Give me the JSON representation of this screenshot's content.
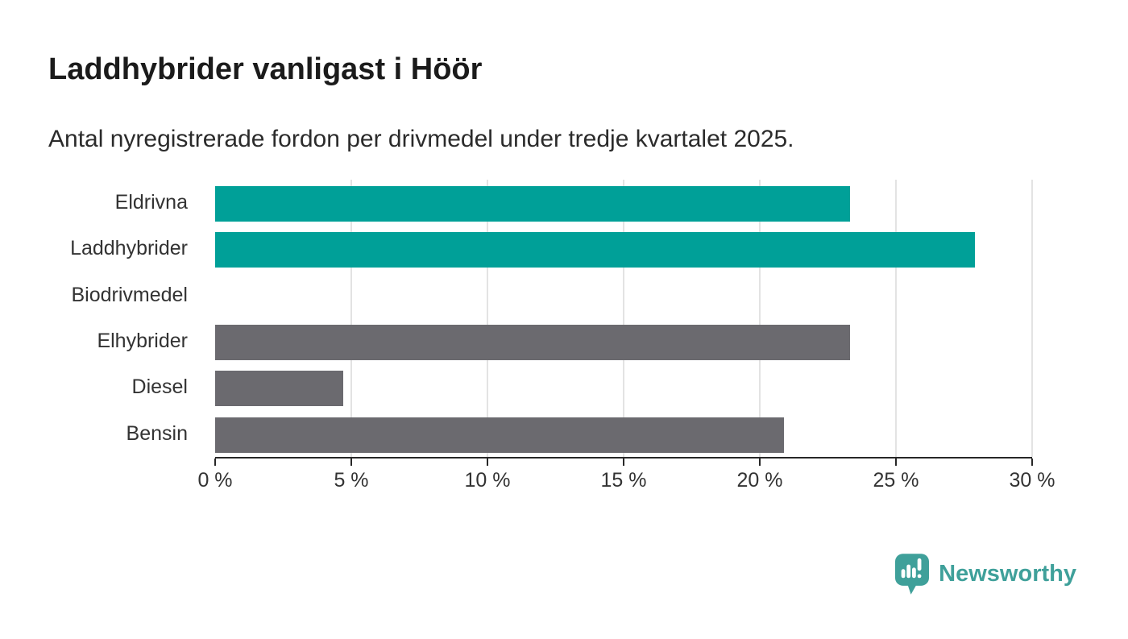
{
  "title": "Laddhybrider vanligast i Höör",
  "subtitle": "Antal nyregistrerade fordon per drivmedel under tredje kvartalet 2025.",
  "branding": {
    "wordmark": "Newsworthy",
    "icon": "newsworthy-speech-bubble-barchart-icon",
    "color": "#3fa09a"
  },
  "colors": {
    "highlight_bar": "#00a098",
    "muted_bar": "#6b6a6f",
    "gridline": "#e3e3e3",
    "axis": "#272727",
    "text": "#333333",
    "title_text": "#1b1b1b",
    "background": "#ffffff"
  },
  "chart_data": {
    "type": "bar",
    "orientation": "horizontal",
    "title": "Laddhybrider vanligast i Höör",
    "subtitle": "Antal nyregistrerade fordon per drivmedel under tredje kvartalet 2025.",
    "categories": [
      "Eldrivna",
      "Laddhybrider",
      "Biodrivmedel",
      "Elhybrider",
      "Diesel",
      "Bensin"
    ],
    "values": [
      23.3,
      27.9,
      0,
      23.3,
      4.7,
      20.9
    ],
    "unit": "%",
    "bar_colors": [
      "#00a098",
      "#00a098",
      "#6b6a6f",
      "#6b6a6f",
      "#6b6a6f",
      "#6b6a6f"
    ],
    "x_ticks": [
      0,
      5,
      10,
      15,
      20,
      25,
      30
    ],
    "x_tick_labels": [
      "0 %",
      "5 %",
      "10 %",
      "15 %",
      "20 %",
      "25 %",
      "30 %"
    ],
    "xlim": [
      0,
      30
    ],
    "grid": "vertical-gridlines-at-ticks-except-zero",
    "legend": "none"
  }
}
